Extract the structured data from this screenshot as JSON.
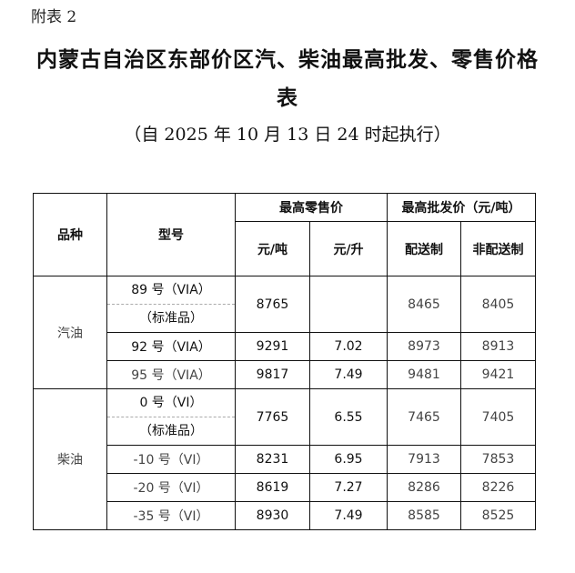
{
  "annex_label": "附表 2",
  "title_line1": "内蒙古自治区东部价区汽、柴油最高批发、零售价格",
  "title_line2": "表",
  "subtitle": "（自 2025 年 10 月 13 日 24 时起执行）",
  "table": {
    "headers": {
      "variety": "品种",
      "model": "型号",
      "retail_group": "最高零售价",
      "wholesale_group": "最高批发价（元/吨）",
      "retail_ton": "元/吨",
      "retail_liter": "元/升",
      "delivery": "配送制",
      "non_delivery": "非配送制"
    },
    "groups": [
      {
        "variety": "汽油",
        "rows": [
          {
            "model": "89 号（VIA）",
            "model_note": "（标准品）",
            "retail_ton": "8765",
            "retail_liter": "",
            "delivery": "8465",
            "non_delivery": "8405"
          },
          {
            "model": "92 号（VIA）",
            "retail_ton": "9291",
            "retail_liter": "7.02",
            "delivery": "8973",
            "non_delivery": "8913"
          },
          {
            "model": "95 号（VIA）",
            "retail_ton": "9817",
            "retail_liter": "7.49",
            "delivery": "9481",
            "non_delivery": "9421"
          }
        ]
      },
      {
        "variety": "柴油",
        "rows": [
          {
            "model": "0 号（VI）",
            "model_note": "（标准品）",
            "retail_ton": "7765",
            "retail_liter": "6.55",
            "delivery": "7465",
            "non_delivery": "7405"
          },
          {
            "model": "-10 号（VI）",
            "retail_ton": "8231",
            "retail_liter": "6.95",
            "delivery": "7913",
            "non_delivery": "7853"
          },
          {
            "model": "-20 号（VI）",
            "retail_ton": "8619",
            "retail_liter": "7.27",
            "delivery": "8286",
            "non_delivery": "8226"
          },
          {
            "model": "-35 号（VI）",
            "retail_ton": "8930",
            "retail_liter": "7.49",
            "delivery": "8585",
            "non_delivery": "8525"
          }
        ]
      }
    ]
  }
}
